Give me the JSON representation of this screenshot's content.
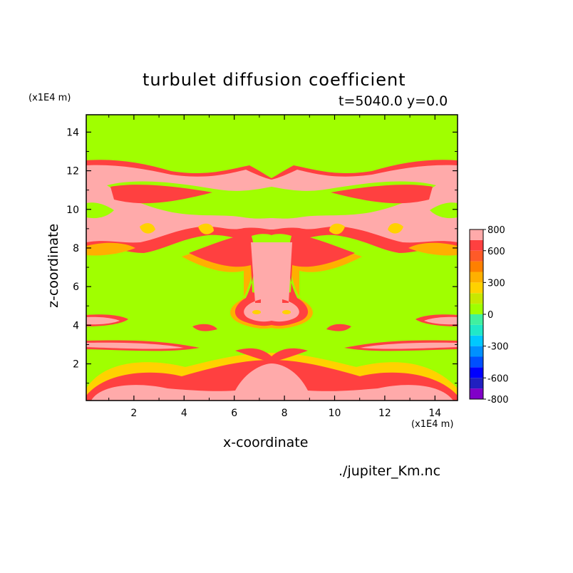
{
  "chart_data": {
    "type": "heatmap",
    "title": "turbulet diffusion coefficient",
    "subtitle": "t=5040.0 y=0.0",
    "xlabel": "x-coordinate",
    "ylabel": "z-coordinate",
    "x_unit": "(x1E4 m)",
    "y_unit": "(x1E4 m)",
    "xlim": [
      0.1,
      14.9
    ],
    "ylim": [
      0.1,
      14.9
    ],
    "x_ticks": [
      2,
      4,
      6,
      8,
      10,
      12,
      14
    ],
    "y_ticks": [
      2,
      4,
      6,
      8,
      10,
      12,
      14
    ],
    "grid": false,
    "colorbar": {
      "levels": [
        -800,
        -700,
        -600,
        -500,
        -400,
        -300,
        -200,
        -100,
        0,
        100,
        200,
        300,
        400,
        500,
        600,
        700,
        800
      ],
      "tick_labels": [
        "800",
        "600",
        "300",
        "0",
        "-300",
        "-600",
        "-800"
      ],
      "colors": [
        "#8000c8",
        "#2020c0",
        "#0000ff",
        "#0050ff",
        "#0090ff",
        "#00c8ff",
        "#20e8c8",
        "#40f0a0",
        "#a0ff00",
        "#c8e800",
        "#ffd200",
        "#ffb000",
        "#ff8000",
        "#ff5a28",
        "#ff4040",
        "#ffaaaa"
      ]
    },
    "field_bands": [
      {
        "name": "top band",
        "z_range": [
          10.4,
          12.6
        ],
        "value": "> 700"
      },
      {
        "name": "central plume",
        "x_range": [
          6.5,
          8.6
        ],
        "z_range": [
          4.5,
          9.0
        ],
        "value": "> 700"
      },
      {
        "name": "mid streak",
        "z_range": [
          2.9,
          3.2
        ],
        "value": "> 700"
      },
      {
        "name": "bottom band",
        "z_range": [
          0.1,
          1.6
        ],
        "value": "> 700"
      },
      {
        "name": "background",
        "value": "0 to 100"
      }
    ]
  },
  "source_file": "./jupiter_Km.nc",
  "colors": {
    "background_field": "#a0ff00",
    "high": "#ffaaaa",
    "mid_high": "#ff4040",
    "mid": "#ff8000",
    "low_positive": "#ffd200"
  }
}
